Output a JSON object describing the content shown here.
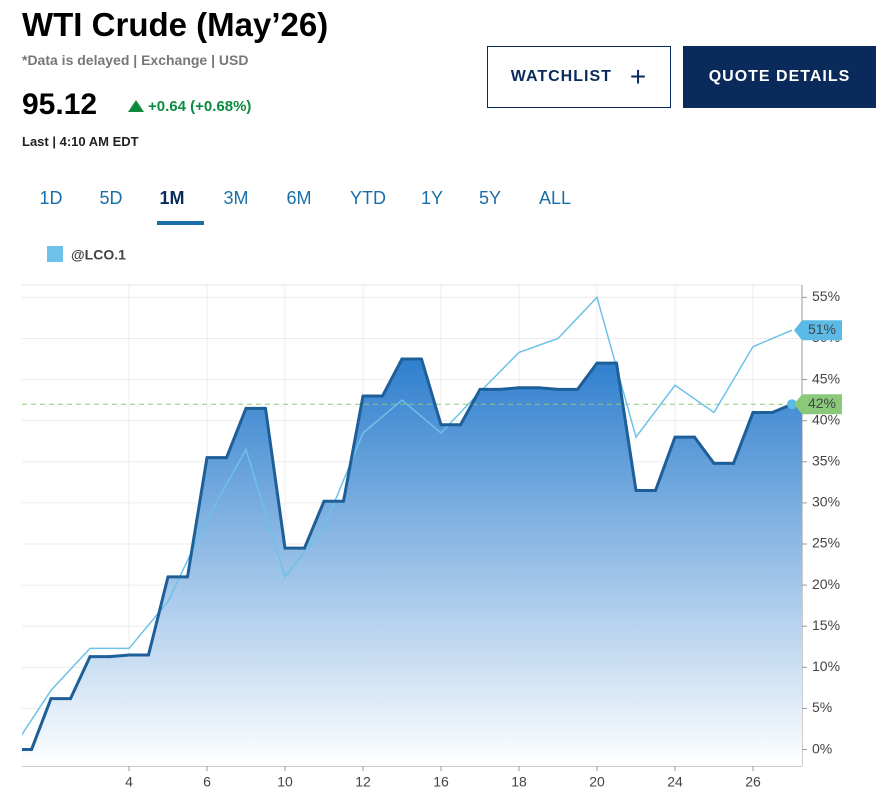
{
  "header": {
    "title": "WTI Crude (May’26)",
    "subtitle": "*Data is delayed | Exchange | USD",
    "price": "95.12",
    "change": "+0.64 (+0.68%)",
    "last": "Last | 4:10 AM EDT"
  },
  "buttons": [
    "WATCHLIST",
    "QUOTE DETAILS"
  ],
  "tabs": [
    "1D",
    "5D",
    "1M",
    "3M",
    "6M",
    "YTD",
    "1Y",
    "5Y",
    "ALL"
  ],
  "chart_data": {
    "type": "line",
    "categories": [
      null,
      null,
      null,
      "4",
      null,
      "6",
      null,
      "10",
      null,
      "12",
      null,
      "16",
      null,
      "18",
      null,
      "20",
      null,
      "24",
      null,
      "26",
      null
    ],
    "series": [
      {
        "color": "#1f5f99",
        "values": [
          0,
          6.2,
          11.3,
          11.5,
          21,
          35.5,
          41.5,
          24.5,
          30.2,
          43,
          47.5,
          39.5,
          43.8,
          44,
          43.8,
          47,
          31.5,
          38,
          34.8,
          41,
          42
        ],
        "value_labels": [
          null,
          null,
          null,
          null,
          null,
          null,
          null,
          null,
          null,
          null,
          null,
          null,
          null,
          null,
          null,
          null,
          null,
          null,
          null,
          null,
          "42%"
        ]
      },
      {
        "name": "@LCO.1",
        "color": "#6ec1e8",
        "values": [
          0,
          7.2,
          12.3,
          12.3,
          18,
          28,
          36.5,
          21,
          27,
          38.5,
          42.5,
          38.5,
          43.5,
          48.3,
          50,
          55,
          38,
          44.3,
          41,
          49,
          51
        ],
        "value_labels": [
          null,
          null,
          null,
          null,
          null,
          null,
          null,
          null,
          null,
          null,
          null,
          null,
          null,
          null,
          null,
          null,
          null,
          null,
          null,
          null,
          "51%"
        ]
      }
    ],
    "ylim": [
      -2,
      56.5
    ],
    "yticks": [
      {
        "value": 0,
        "label": "0%"
      },
      {
        "value": 5,
        "label": "5%"
      },
      {
        "value": 10,
        "label": "10%"
      },
      {
        "value": 15,
        "label": "15%"
      },
      {
        "value": 20,
        "label": "20%"
      },
      {
        "value": 25,
        "label": "25%"
      },
      {
        "value": 30,
        "label": "30%"
      },
      {
        "value": 35,
        "label": "35%"
      },
      {
        "value": 40,
        "label": "40%"
      },
      {
        "value": 45,
        "label": "45%"
      },
      {
        "value": 50,
        "label": "50%"
      },
      {
        "value": 55,
        "label": "55%"
      }
    ],
    "grid": true
  }
}
